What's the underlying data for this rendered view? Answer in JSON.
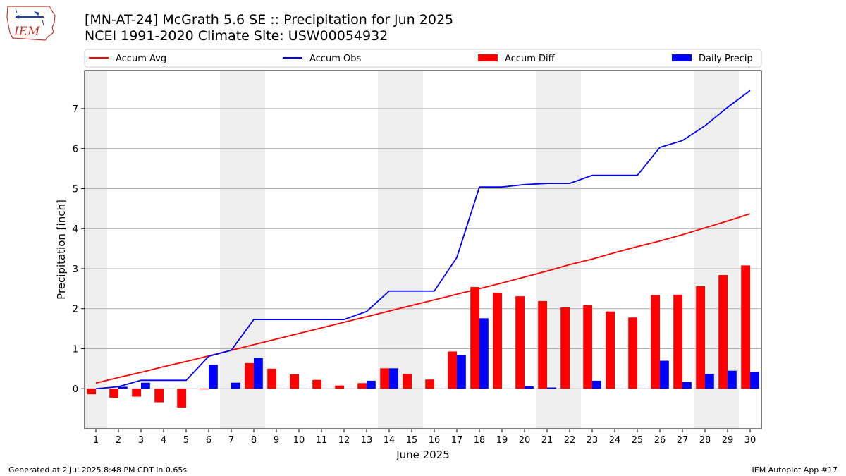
{
  "logo": {
    "text": "IEM",
    "icon": "iem-logo-icon"
  },
  "header": {
    "title": "[MN-AT-24] McGrath 5.6 SE :: Precipitation for Jun 2025",
    "subtitle": "NCEI 1991-2020 Climate Site: USW00054932"
  },
  "footer": {
    "left": "Generated at 2 Jul 2025 8:48 PM CDT in 0.65s",
    "right": "IEM Autoplot App #17"
  },
  "chart_data": {
    "type": "bar",
    "xlabel": "June 2025",
    "ylabel": "Precipitation [inch]",
    "xlim": [
      0.5,
      30.5
    ],
    "ylim": [
      -1.0,
      7.95
    ],
    "yticks": [
      0,
      1,
      2,
      3,
      4,
      5,
      6,
      7
    ],
    "grid": "horizontal",
    "legend_placement": "top",
    "days": [
      1,
      2,
      3,
      4,
      5,
      6,
      7,
      8,
      9,
      10,
      11,
      12,
      13,
      14,
      15,
      16,
      17,
      18,
      19,
      20,
      21,
      22,
      23,
      24,
      25,
      26,
      27,
      28,
      29,
      30
    ],
    "weekend_shading": [
      [
        1,
        1
      ],
      [
        7,
        8
      ],
      [
        14,
        15
      ],
      [
        21,
        22
      ],
      [
        28,
        29
      ]
    ],
    "shade_color": "#eeeeee",
    "series": [
      {
        "name": "Accum Avg",
        "kind": "line",
        "color": "#ff0000",
        "values": [
          0.14,
          0.28,
          0.41,
          0.55,
          0.68,
          0.82,
          0.96,
          1.1,
          1.24,
          1.38,
          1.52,
          1.66,
          1.8,
          1.94,
          2.08,
          2.22,
          2.36,
          2.5,
          2.64,
          2.79,
          2.94,
          3.1,
          3.24,
          3.4,
          3.55,
          3.69,
          3.85,
          4.02,
          4.19,
          4.37
        ]
      },
      {
        "name": "Accum Obs",
        "kind": "line",
        "color": "#0000ff",
        "values": [
          0.0,
          0.05,
          0.21,
          0.21,
          0.21,
          0.81,
          0.96,
          1.73,
          1.73,
          1.73,
          1.73,
          1.73,
          1.93,
          2.44,
          2.44,
          2.44,
          3.28,
          5.04,
          5.04,
          5.1,
          5.13,
          5.13,
          5.33,
          5.33,
          5.33,
          6.03,
          6.2,
          6.57,
          7.03,
          7.45
        ]
      },
      {
        "name": "Accum Diff",
        "kind": "bar",
        "color": "#ff0000",
        "values": [
          -0.14,
          -0.23,
          -0.2,
          -0.34,
          -0.47,
          -0.01,
          0.0,
          0.64,
          0.5,
          0.36,
          0.22,
          0.08,
          0.14,
          0.51,
          0.37,
          0.23,
          0.93,
          2.54,
          2.4,
          2.31,
          2.19,
          2.03,
          2.09,
          1.93,
          1.78,
          2.34,
          2.35,
          2.56,
          2.84,
          3.08
        ]
      },
      {
        "name": "Daily Precip",
        "kind": "bar",
        "color": "#0000ff",
        "values": [
          0.0,
          0.05,
          0.15,
          0.0,
          0.0,
          0.6,
          0.15,
          0.77,
          0.0,
          0.0,
          0.0,
          0.0,
          0.2,
          0.51,
          0.0,
          0.0,
          0.84,
          1.76,
          0.0,
          0.06,
          0.03,
          0.0,
          0.2,
          0.0,
          0.0,
          0.7,
          0.17,
          0.37,
          0.45,
          0.42
        ]
      }
    ]
  }
}
